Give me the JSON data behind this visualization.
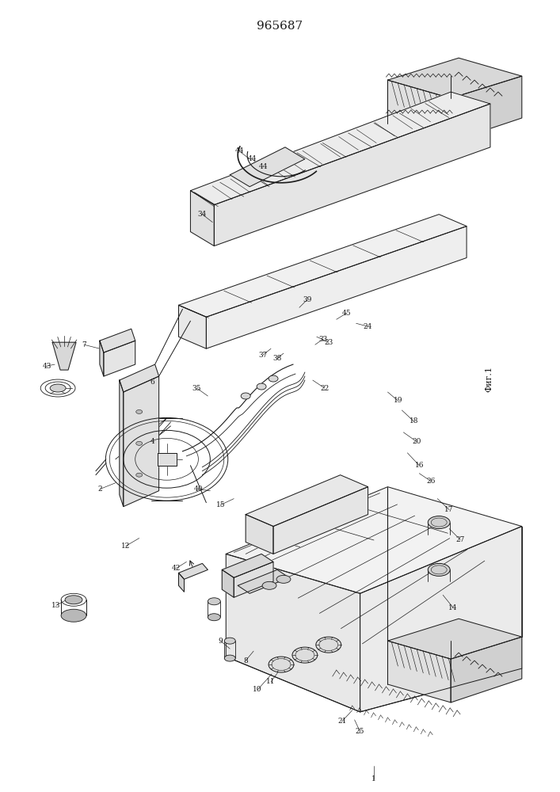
{
  "title": "965687",
  "fig_label": "Фиг.1",
  "bg_color": "#ffffff",
  "line_color": "#1a1a1a",
  "title_fontsize": 11,
  "fig_width": 7.07,
  "fig_height": 10.0,
  "dpi": 100
}
